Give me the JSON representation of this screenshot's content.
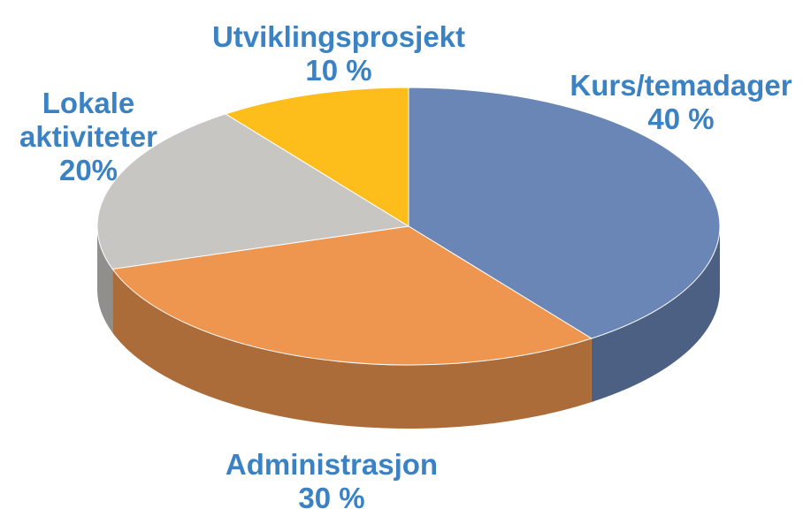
{
  "chart_data": {
    "type": "pie",
    "style": "3d",
    "slices": [
      {
        "label": "Kurs/temadager",
        "value_label": "40 %",
        "value": 40,
        "color": "#6a86b6"
      },
      {
        "label": "Administrasjon",
        "value_label": "30 %",
        "value": 30,
        "color": "#ee964f"
      },
      {
        "label": "Lokale aktiviteter",
        "value_label": "20%",
        "value": 20,
        "color": "#c8c6c3"
      },
      {
        "label": "Utviklingsprosjekt",
        "value_label": "10 %",
        "value": 10,
        "color": "#fdbd1b"
      }
    ],
    "label_color": "#3b82c4"
  }
}
